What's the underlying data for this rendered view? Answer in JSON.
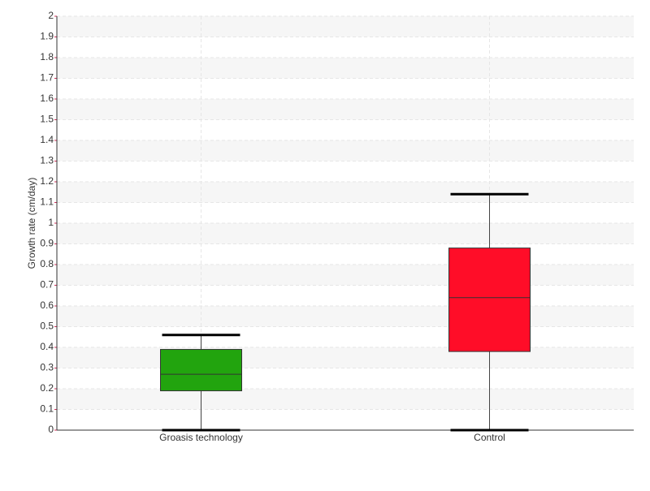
{
  "chart_data": {
    "type": "box",
    "y_label": "Growth rate (cm/day)",
    "categories": [
      "Groasis technology",
      "Control"
    ],
    "boxes": [
      {
        "min": 0,
        "q1": 0.19,
        "median": 0.27,
        "q3": 0.39,
        "max": 0.46,
        "color": "#22a40e"
      },
      {
        "min": 0,
        "q1": 0.38,
        "median": 0.64,
        "q3": 0.88,
        "max": 1.14,
        "color": "#ff0d28"
      }
    ],
    "ylim": [
      0,
      2
    ],
    "yticks": [
      0,
      0.1,
      0.2,
      0.3,
      0.4,
      0.5,
      0.6,
      0.7,
      0.8,
      0.9,
      1,
      1.1,
      1.2,
      1.3,
      1.4,
      1.5,
      1.6,
      1.7,
      1.8,
      1.9,
      2
    ],
    "grid": true
  }
}
